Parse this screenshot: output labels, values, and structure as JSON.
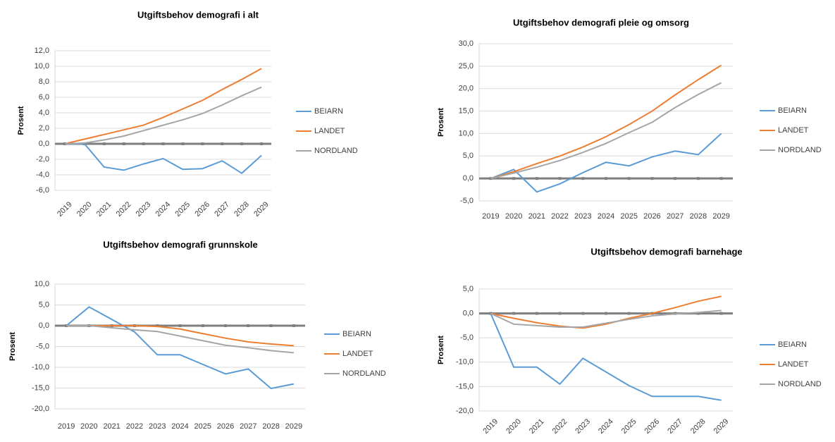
{
  "chart_data": [
    {
      "type": "line",
      "title": "Utgiftsbehov demografi i alt",
      "y_label": "Prosent",
      "categories": [
        "2019",
        "2020",
        "2021",
        "2022",
        "2023",
        "2024",
        "2025",
        "2026",
        "2027",
        "2028",
        "2029"
      ],
      "ylim": [
        -6,
        12
      ],
      "yticks": [
        {
          "value": -6,
          "label": "-6,0"
        },
        {
          "value": -4,
          "label": "-4,0"
        },
        {
          "value": -2,
          "label": "-2,0"
        },
        {
          "value": 0,
          "label": "0,0"
        },
        {
          "value": 2,
          "label": "2,0"
        },
        {
          "value": 4,
          "label": "4,0"
        },
        {
          "value": 6,
          "label": "6,0"
        },
        {
          "value": 8,
          "label": "8,0"
        },
        {
          "value": 10,
          "label": "10,0"
        },
        {
          "value": 12,
          "label": "12,0"
        }
      ],
      "grid": true,
      "series": [
        {
          "name": "BEIARN",
          "color": "#5b9bd5",
          "values": [
            0,
            0,
            -3.0,
            -3.4,
            -2.6,
            -1.9,
            -3.3,
            -3.2,
            -2.2,
            -3.8,
            -1.5
          ]
        },
        {
          "name": "LANDET",
          "color": "#ed7d31",
          "values": [
            0,
            0.6,
            1.2,
            1.8,
            2.4,
            3.4,
            4.5,
            5.6,
            7.0,
            8.3,
            9.7
          ]
        },
        {
          "name": "NORDLAND",
          "color": "#a5a5a5",
          "values": [
            0,
            0.1,
            0.5,
            1.0,
            1.7,
            2.4,
            3.1,
            3.9,
            5.0,
            6.2,
            7.3
          ]
        }
      ]
    },
    {
      "type": "line",
      "title": "Utgiftsbehov demografi pleie og omsorg",
      "y_label": "Prosent",
      "categories": [
        "2019",
        "2020",
        "2021",
        "2022",
        "2023",
        "2024",
        "2025",
        "2026",
        "2027",
        "2028",
        "2029"
      ],
      "ylim": [
        -5,
        30
      ],
      "yticks": [
        {
          "value": -5,
          "label": "-5,0"
        },
        {
          "value": 0,
          "label": "0,0"
        },
        {
          "value": 5,
          "label": "5,0"
        },
        {
          "value": 10,
          "label": "10,0"
        },
        {
          "value": 15,
          "label": "15,0"
        },
        {
          "value": 20,
          "label": "20,0"
        },
        {
          "value": 25,
          "label": "25,0"
        },
        {
          "value": 30,
          "label": "30,0"
        }
      ],
      "grid": true,
      "series": [
        {
          "name": "BEIARN",
          "color": "#5b9bd5",
          "values": [
            0,
            2.0,
            -3.0,
            -1.2,
            1.3,
            3.6,
            2.8,
            4.8,
            6.1,
            5.3,
            10.0
          ]
        },
        {
          "name": "LANDET",
          "color": "#ed7d31",
          "values": [
            0,
            1.5,
            3.3,
            5.0,
            7.0,
            9.3,
            12.0,
            15.0,
            18.6,
            22.0,
            25.2
          ]
        },
        {
          "name": "NORDLAND",
          "color": "#a5a5a5",
          "values": [
            0,
            1.2,
            2.5,
            4.0,
            5.8,
            7.8,
            10.2,
            12.5,
            15.8,
            18.7,
            21.3
          ]
        }
      ]
    },
    {
      "type": "line",
      "title": "Utgiftsbehov demografi grunnskole",
      "y_label": "Prosent",
      "categories": [
        "2019",
        "2020",
        "2021",
        "2022",
        "2023",
        "2024",
        "2025",
        "2026",
        "2027",
        "2028",
        "2029"
      ],
      "ylim": [
        -20,
        10
      ],
      "yticks": [
        {
          "value": -20,
          "label": "-20,0"
        },
        {
          "value": -15,
          "label": "-15,0"
        },
        {
          "value": -10,
          "label": "-10,0"
        },
        {
          "value": -5,
          "label": "-5,0"
        },
        {
          "value": 0,
          "label": "0,0"
        },
        {
          "value": 5,
          "label": "5,0"
        },
        {
          "value": 10,
          "label": "10,0"
        }
      ],
      "grid": true,
      "series": [
        {
          "name": "BEIARN",
          "color": "#5b9bd5",
          "values": [
            0,
            4.5,
            1.5,
            -1.5,
            -7.0,
            -7.0,
            -9.3,
            -11.6,
            -10.4,
            -15.1,
            -14.0
          ]
        },
        {
          "name": "LANDET",
          "color": "#ed7d31",
          "values": [
            0,
            0,
            0,
            0,
            -0.2,
            -0.8,
            -1.9,
            -3.0,
            -3.9,
            -4.4,
            -4.8
          ]
        },
        {
          "name": "NORDLAND",
          "color": "#a5a5a5",
          "values": [
            0,
            0,
            -0.5,
            -1.0,
            -1.4,
            -2.5,
            -3.6,
            -4.7,
            -5.3,
            -6.0,
            -6.5
          ]
        }
      ]
    },
    {
      "type": "line",
      "title": "Utgiftsbehov demografi barnehage",
      "y_label": "Prosent",
      "categories": [
        "2019",
        "2020",
        "2021",
        "2022",
        "2023",
        "2024",
        "2025",
        "2026",
        "2027",
        "2028",
        "2029"
      ],
      "ylim": [
        -20,
        5
      ],
      "yticks": [
        {
          "value": -20,
          "label": "-20,0"
        },
        {
          "value": -15,
          "label": "-15,0"
        },
        {
          "value": -10,
          "label": "-10,0"
        },
        {
          "value": -5,
          "label": "-5,0"
        },
        {
          "value": 0,
          "label": "0,0"
        },
        {
          "value": 5,
          "label": "5,0"
        }
      ],
      "grid": true,
      "series": [
        {
          "name": "BEIARN",
          "color": "#5b9bd5",
          "values": [
            0,
            -11.0,
            -11.0,
            -14.5,
            -9.2,
            -12.0,
            -14.8,
            -17.0,
            -17.0,
            -17.0,
            -17.8
          ]
        },
        {
          "name": "LANDET",
          "color": "#ed7d31",
          "values": [
            0,
            -1.0,
            -1.9,
            -2.6,
            -3.0,
            -2.2,
            -1.0,
            0.0,
            1.2,
            2.5,
            3.5
          ]
        },
        {
          "name": "NORDLAND",
          "color": "#a5a5a5",
          "values": [
            0,
            -2.2,
            -2.5,
            -2.8,
            -2.8,
            -2.0,
            -1.2,
            -0.5,
            -0.1,
            0.2,
            0.6
          ]
        }
      ]
    }
  ]
}
